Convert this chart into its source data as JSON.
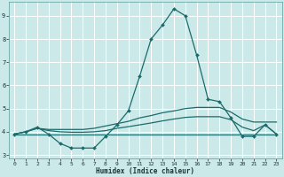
{
  "xlabel": "Humidex (Indice chaleur)",
  "background_color": "#cce9e9",
  "grid_color": "#ffffff",
  "line_color": "#1a6b6b",
  "xlim": [
    -0.5,
    23.5
  ],
  "ylim": [
    2.85,
    9.6
  ],
  "yticks": [
    3,
    4,
    5,
    6,
    7,
    8,
    9
  ],
  "xticks": [
    0,
    1,
    2,
    3,
    4,
    5,
    6,
    7,
    8,
    9,
    10,
    11,
    12,
    13,
    14,
    15,
    16,
    17,
    18,
    19,
    20,
    21,
    22,
    23
  ],
  "series": [
    {
      "x": [
        0,
        1,
        2,
        3,
        4,
        5,
        6,
        7,
        8,
        9,
        10,
        11,
        12,
        13,
        14,
        15,
        16,
        17,
        18,
        19,
        20,
        21,
        22,
        23
      ],
      "y": [
        3.9,
        4.0,
        4.2,
        3.9,
        3.5,
        3.3,
        3.3,
        3.3,
        3.8,
        4.3,
        4.9,
        6.4,
        8.0,
        8.6,
        9.3,
        9.0,
        7.3,
        5.4,
        5.3,
        4.6,
        3.8,
        3.8,
        4.3,
        3.9
      ],
      "marker": "D",
      "markersize": 2.0,
      "linewidth": 0.9
    },
    {
      "x": [
        0,
        1,
        2,
        3,
        4,
        5,
        6,
        7,
        8,
        9,
        10,
        11,
        12,
        13,
        14,
        15,
        16,
        17,
        18,
        19,
        20,
        21,
        22,
        23
      ],
      "y": [
        3.9,
        4.0,
        4.15,
        4.1,
        4.1,
        4.1,
        4.1,
        4.15,
        4.25,
        4.35,
        4.45,
        4.6,
        4.7,
        4.82,
        4.9,
        5.0,
        5.05,
        5.05,
        5.05,
        4.85,
        4.55,
        4.42,
        4.42,
        4.42
      ],
      "marker": null,
      "markersize": 0,
      "linewidth": 0.9
    },
    {
      "x": [
        0,
        1,
        2,
        3,
        4,
        5,
        6,
        7,
        8,
        9,
        10,
        11,
        12,
        13,
        14,
        15,
        16,
        17,
        18,
        19,
        20,
        21,
        22,
        23
      ],
      "y": [
        3.9,
        4.0,
        4.15,
        4.05,
        4.0,
        3.98,
        3.98,
        4.0,
        4.05,
        4.15,
        4.22,
        4.3,
        4.38,
        4.47,
        4.55,
        4.62,
        4.65,
        4.65,
        4.65,
        4.52,
        4.2,
        4.05,
        4.3,
        3.9
      ],
      "marker": null,
      "markersize": 0,
      "linewidth": 0.9
    },
    {
      "x": [
        0,
        1,
        2,
        3,
        4,
        5,
        6,
        7,
        8,
        9,
        10,
        11,
        12,
        13,
        14,
        15,
        16,
        17,
        18,
        19,
        20,
        21,
        22,
        23
      ],
      "y": [
        3.9,
        3.9,
        3.9,
        3.9,
        3.9,
        3.9,
        3.9,
        3.9,
        3.9,
        3.9,
        3.9,
        3.9,
        3.9,
        3.9,
        3.9,
        3.9,
        3.9,
        3.9,
        3.9,
        3.9,
        3.9,
        3.9,
        3.9,
        3.9
      ],
      "marker": null,
      "markersize": 0,
      "linewidth": 0.9
    }
  ]
}
